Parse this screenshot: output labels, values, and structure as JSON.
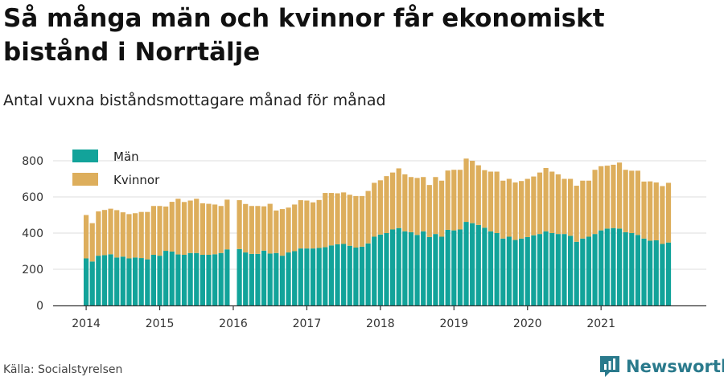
{
  "title": "Så många män och kvinnor får ekonomiskt bistånd i Norrtälje",
  "subtitle": "Antal vuxna biståndsmottagare månad för månad",
  "source": "Källa: Socialstyrelsen",
  "brand": "Newsworthy",
  "colors": {
    "men": "#12a39a",
    "women": "#ddae5c",
    "grid": "#dddddd",
    "axis": "#333333",
    "brand": "#2a7a8c"
  },
  "chart_data": {
    "type": "bar",
    "stacked": true,
    "x_label": "",
    "y_label": "",
    "ylim": [
      0,
      880
    ],
    "y_ticks": [
      0,
      200,
      400,
      600,
      800
    ],
    "x_tick_labels": [
      "2014",
      "2015",
      "2016",
      "2017",
      "2018",
      "2019",
      "2020",
      "2021"
    ],
    "legend_position": "top-left",
    "categories": [
      "2014-01",
      "2014-02",
      "2014-03",
      "2014-04",
      "2014-05",
      "2014-06",
      "2014-07",
      "2014-08",
      "2014-09",
      "2014-10",
      "2014-11",
      "2014-12",
      "2015-01",
      "2015-02",
      "2015-03",
      "2015-04",
      "2015-05",
      "2015-06",
      "2015-07",
      "2015-08",
      "2015-09",
      "2015-10",
      "2015-11",
      "2015-12",
      "2016-01",
      "2016-02",
      "2016-03",
      "2016-04",
      "2016-05",
      "2016-06",
      "2016-07",
      "2016-08",
      "2016-09",
      "2016-10",
      "2016-11",
      "2016-12",
      "2017-01",
      "2017-02",
      "2017-03",
      "2017-04",
      "2017-05",
      "2017-06",
      "2017-07",
      "2017-08",
      "2017-09",
      "2017-10",
      "2017-11",
      "2017-12",
      "2018-01",
      "2018-02",
      "2018-03",
      "2018-04",
      "2018-05",
      "2018-06",
      "2018-07",
      "2018-08",
      "2018-09",
      "2018-10",
      "2018-11",
      "2018-12",
      "2019-01",
      "2019-02",
      "2019-03",
      "2019-04",
      "2019-05",
      "2019-06",
      "2019-07",
      "2019-08",
      "2019-09",
      "2019-10",
      "2019-11",
      "2019-12",
      "2020-01",
      "2020-02",
      "2020-03",
      "2020-04",
      "2020-05",
      "2020-06",
      "2020-07",
      "2020-08",
      "2020-09",
      "2020-10",
      "2020-11",
      "2020-12",
      "2021-01",
      "2021-02",
      "2021-03",
      "2021-04",
      "2021-05",
      "2021-06",
      "2021-07",
      "2021-08",
      "2021-09",
      "2021-10",
      "2021-11",
      "2021-12"
    ],
    "series": [
      {
        "name": "Män",
        "values": [
          260,
          243,
          275,
          278,
          283,
          265,
          270,
          260,
          265,
          262,
          255,
          280,
          275,
          302,
          298,
          282,
          280,
          290,
          290,
          280,
          280,
          283,
          290,
          310,
          null,
          312,
          293,
          285,
          285,
          303,
          287,
          290,
          275,
          293,
          300,
          315,
          315,
          315,
          318,
          322,
          332,
          338,
          340,
          330,
          320,
          325,
          343,
          380,
          392,
          400,
          420,
          428,
          410,
          405,
          390,
          410,
          378,
          395,
          380,
          418,
          415,
          420,
          462,
          455,
          445,
          430,
          410,
          400,
          370,
          380,
          362,
          370,
          378,
          388,
          395,
          410,
          400,
          395,
          395,
          385,
          352,
          370,
          380,
          395,
          415,
          425,
          428,
          425,
          405,
          400,
          390,
          370,
          358,
          360,
          340,
          348
        ]
      },
      {
        "name": "Kvinnor",
        "values": [
          240,
          212,
          245,
          250,
          252,
          262,
          245,
          245,
          245,
          255,
          262,
          270,
          275,
          245,
          275,
          308,
          292,
          290,
          300,
          285,
          282,
          275,
          260,
          275,
          null,
          270,
          268,
          265,
          265,
          245,
          275,
          235,
          258,
          248,
          258,
          267,
          265,
          255,
          265,
          300,
          290,
          282,
          285,
          282,
          285,
          280,
          290,
          298,
          300,
          315,
          315,
          330,
          315,
          305,
          315,
          300,
          288,
          315,
          310,
          328,
          335,
          330,
          350,
          345,
          330,
          318,
          330,
          340,
          320,
          320,
          318,
          318,
          322,
          325,
          340,
          350,
          340,
          330,
          305,
          315,
          310,
          320,
          310,
          355,
          355,
          348,
          350,
          365,
          345,
          345,
          355,
          315,
          328,
          320,
          320,
          330
        ]
      }
    ]
  }
}
